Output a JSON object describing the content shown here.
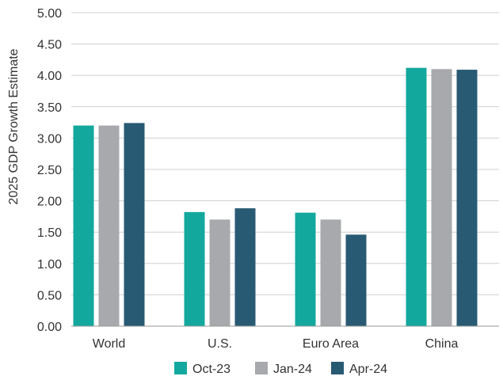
{
  "chart_data": {
    "type": "bar",
    "categories": [
      "World",
      "U.S.",
      "Euro Area",
      "China"
    ],
    "series": [
      {
        "name": "Oct-23",
        "values": [
          3.2,
          1.82,
          1.81,
          4.12
        ],
        "color": "#13a89e"
      },
      {
        "name": "Jan-24",
        "values": [
          3.2,
          1.7,
          1.7,
          4.1
        ],
        "color": "#a7a9ac"
      },
      {
        "name": "Apr-24",
        "values": [
          3.24,
          1.88,
          1.46,
          4.09
        ],
        "color": "#285a73"
      }
    ],
    "ylabel": "2025 GDP Growth Estimate",
    "xlabel": "",
    "ylim": [
      0,
      5
    ],
    "yticks": [
      "0.00",
      "0.50",
      "1.00",
      "1.50",
      "2.00",
      "2.50",
      "3.00",
      "3.50",
      "4.00",
      "4.50",
      "5.00"
    ],
    "grid": true,
    "legend_position": "bottom"
  }
}
